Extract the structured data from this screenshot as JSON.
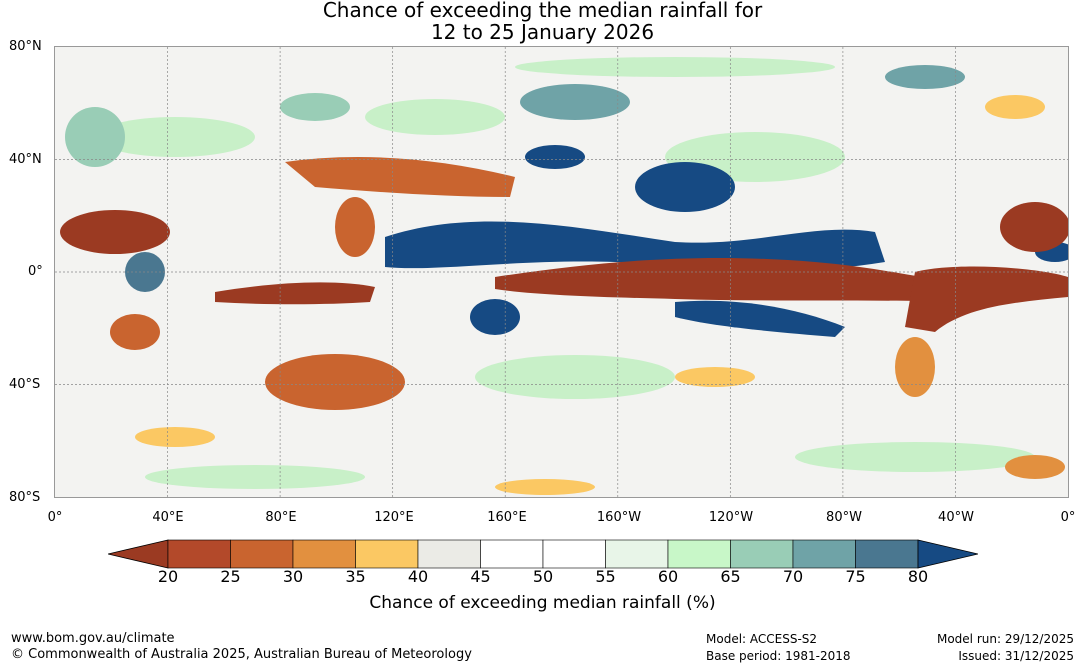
{
  "title_line1": "Chance of exceeding the median rainfall for",
  "title_line2": "12 to 25 January 2026",
  "lat_labels": [
    "80°N",
    "40°N",
    "0°",
    "40°S",
    "80°S"
  ],
  "lon_labels": [
    "0°",
    "40°E",
    "80°E",
    "120°E",
    "160°E",
    "160°W",
    "120°W",
    "80°W",
    "40°W",
    "0°"
  ],
  "colorbar": {
    "ticks": [
      "20",
      "25",
      "30",
      "35",
      "40",
      "45",
      "50",
      "55",
      "60",
      "65",
      "70",
      "75",
      "80"
    ],
    "colors": [
      "#9b3a22",
      "#b3492a",
      "#c9642f",
      "#e2903f",
      "#fbc863",
      "#ebebe6",
      "#ffffff",
      "#ffffff",
      "#e8f5e8",
      "#c8f7c8",
      "#99cdb6",
      "#6fa3a7",
      "#4a7790",
      "#164a83"
    ],
    "label": "Chance of exceeding median rainfall (%)"
  },
  "footer": {
    "url": "www.bom.gov.au/climate",
    "copyright": "© Commonwealth of Australia 2025, Australian Bureau of Meteorology",
    "model": "Model: ACCESS-S2",
    "base_period": "Base period: 1981-2018",
    "model_run": "Model run: 29/12/2025",
    "issued": "Issued: 31/12/2025"
  }
}
